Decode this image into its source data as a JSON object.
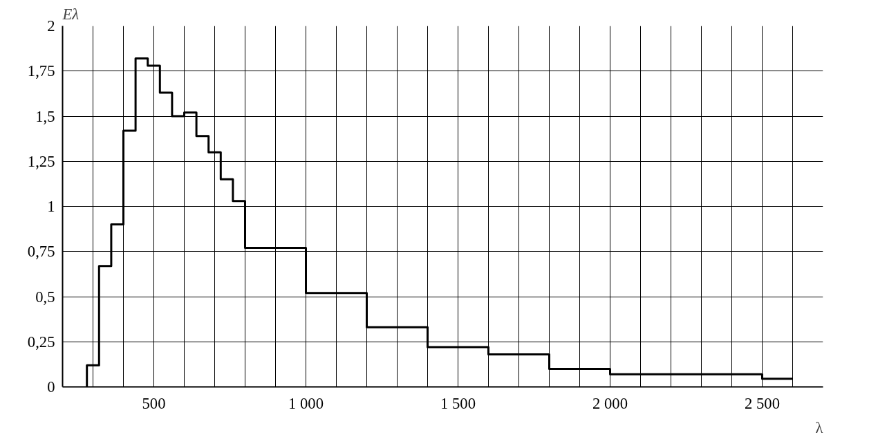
{
  "chart_data": {
    "type": "step",
    "xlabel": "λ",
    "ylabel": "Eλ",
    "x": [
      280,
      280,
      320,
      360,
      400,
      440,
      480,
      520,
      560,
      600,
      640,
      680,
      720,
      760,
      800,
      1000,
      1200,
      1400,
      1600,
      1800,
      2000,
      2500,
      2600
    ],
    "series": [
      {
        "color": "#000000",
        "values": [
          0,
          0.12,
          0.67,
          0.9,
          1.42,
          1.82,
          1.78,
          1.63,
          1.5,
          1.52,
          1.39,
          1.3,
          1.15,
          1.03,
          0.77,
          0.52,
          0.33,
          0.22,
          0.18,
          0.1,
          0.07,
          0.045,
          0.045
        ]
      }
    ],
    "xlim": [
      200,
      2700
    ],
    "ylim": [
      0,
      2
    ],
    "xticks": [
      {
        "value": 300,
        "label": null
      },
      {
        "value": 400,
        "label": null
      },
      500,
      {
        "value": 600,
        "label": null
      },
      {
        "value": 700,
        "label": null
      },
      {
        "value": 800,
        "label": null
      },
      {
        "value": 900,
        "label": null
      },
      {
        "value": 1000,
        "label": "1 000"
      },
      {
        "value": 1100,
        "label": null
      },
      {
        "value": 1200,
        "label": null
      },
      {
        "value": 1300,
        "label": null
      },
      {
        "value": 1400,
        "label": null
      },
      {
        "value": 1500,
        "label": "1 500"
      },
      {
        "value": 1600,
        "label": null
      },
      {
        "value": 1700,
        "label": null
      },
      {
        "value": 1800,
        "label": null
      },
      {
        "value": 1900,
        "label": null
      },
      {
        "value": 2000,
        "label": "2 000"
      },
      {
        "value": 2100,
        "label": null
      },
      {
        "value": 2200,
        "label": null
      },
      {
        "value": 2300,
        "label": null
      },
      {
        "value": 2400,
        "label": null
      },
      {
        "value": 2500,
        "label": "2 500"
      },
      {
        "value": 2600,
        "label": null
      }
    ],
    "yticks": [
      0,
      {
        "value": 0.25,
        "label": "0,25"
      },
      {
        "value": 0.5,
        "label": "0,5"
      },
      {
        "value": 0.75,
        "label": "0,75"
      },
      1,
      {
        "value": 1.25,
        "label": "1,25"
      },
      {
        "value": 1.5,
        "label": "1,5"
      },
      {
        "value": 1.75,
        "label": "1,75"
      },
      2
    ],
    "grid": true,
    "line_style": "solid"
  }
}
